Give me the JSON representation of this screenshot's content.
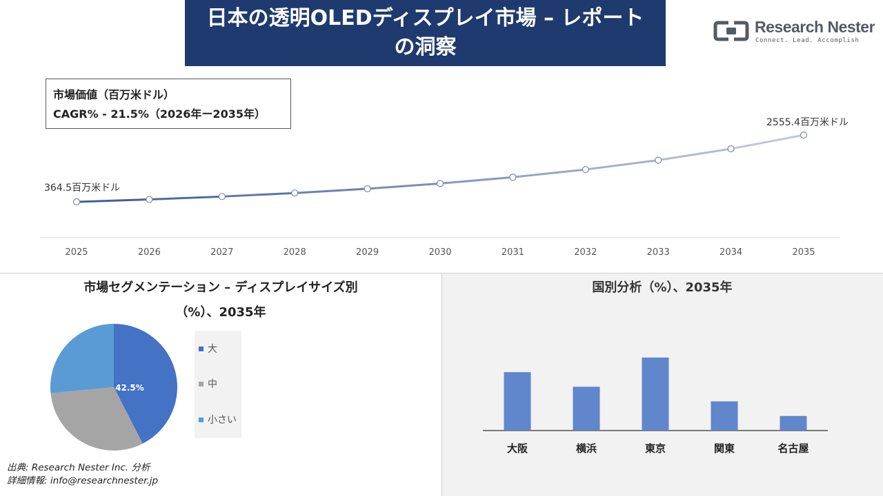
{
  "header": {
    "title": "日本の透明OLEDディスプレイ市場 – レポートの洞察"
  },
  "logo": {
    "name": "Research Nester",
    "tagline": "Connect. Lead. Accomplish"
  },
  "metric_box": {
    "line1": "市場価値（百万米ドル）",
    "line2": "CAGR% - 21.5%（2026年ー2035年）"
  },
  "segment_section": {
    "title_line1": "市場セグメンテーション – ディスプレイサイズ別",
    "title_line2": "（%）、2035年"
  },
  "country_section": {
    "title": "国別分析（%）、2035年"
  },
  "source": {
    "line1": "出典: Research Nester Inc. 分析",
    "line2": "詳細情報: info@researchnester.jp"
  },
  "colors": {
    "title_bg": "#1f3a6e",
    "line_start": "#3b5a95",
    "line_end": "#c5cde0",
    "pie_large": "#4472c4",
    "pie_medium": "#a5a5a5",
    "pie_small": "#5b9bd5",
    "bar": "#6086cc"
  },
  "chart_data": [
    {
      "type": "line",
      "x": [
        "2025",
        "2026",
        "2027",
        "2028",
        "2029",
        "2030",
        "2031",
        "2032",
        "2033",
        "2034",
        "2035"
      ],
      "values": [
        364.5,
        442.9,
        538.1,
        653.8,
        794.4,
        965.2,
        1172.7,
        1424.8,
        1731.1,
        2103.3,
        2555.4
      ],
      "start_label": "364.5百万米ドル",
      "end_label": "2555.4百万米ドル",
      "ylim": [
        0,
        3000
      ]
    },
    {
      "type": "pie",
      "labels": [
        "大",
        "中",
        "小さい"
      ],
      "values": [
        42.5,
        31.0,
        26.5
      ],
      "data_labels": [
        "42.5%",
        "",
        ""
      ],
      "legend": "right"
    },
    {
      "type": "bar",
      "categories": [
        "大阪",
        "横浜",
        "東京",
        "関東",
        "名古屋"
      ],
      "values": [
        28,
        21,
        35,
        14,
        7
      ],
      "ylim": [
        0,
        40
      ]
    }
  ]
}
